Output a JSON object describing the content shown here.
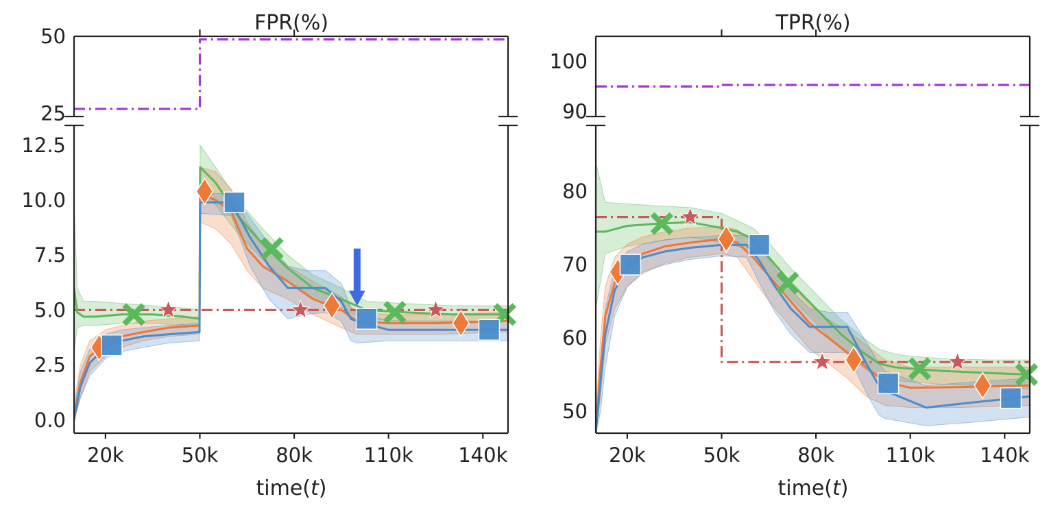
{
  "colors": {
    "green": "#5cb85c",
    "orange": "#ee7733",
    "blue": "#4a8ccc",
    "red": "#c85a5a",
    "purple": "#a335d9",
    "arrow": "#4169e1",
    "axis": "#222222"
  },
  "chart_data": [
    {
      "type": "line",
      "id": "fpr",
      "title": "FPR(%)",
      "xlabel_prefix": "time(",
      "xlabel_var": "t",
      "xlabel_suffix": ")",
      "xlim": [
        10000,
        148000
      ],
      "xticks": [
        20000,
        50000,
        80000,
        110000,
        140000
      ],
      "xtick_labels": [
        "20k",
        "50k",
        "80k",
        "110k",
        "140k"
      ],
      "top_ylim": [
        24,
        50
      ],
      "top_yticks": [
        25,
        50
      ],
      "top_ytick_labels": [
        "25",
        "50"
      ],
      "bottom_ylim": [
        -0.6,
        13.4
      ],
      "bottom_yticks": [
        0.0,
        2.5,
        5.0,
        7.5,
        10.0,
        12.5
      ],
      "bottom_ytick_labels": [
        "0.0",
        "2.5",
        "5.0",
        "7.5",
        "10.0",
        "12.5"
      ],
      "series": [
        {
          "name": "purple baseline",
          "color_key": "purple",
          "dash": "dashdot",
          "panel": "top",
          "step": true,
          "x": [
            10000,
            50000,
            50000,
            148000
          ],
          "y": [
            26.5,
            26.5,
            49,
            49
          ]
        },
        {
          "name": "red reference",
          "color_key": "red",
          "dash": "dashdot",
          "panel": "bottom",
          "step": false,
          "x": [
            10000,
            148000
          ],
          "y": [
            5.0,
            5.0
          ],
          "markers": {
            "shape": "star",
            "x": [
              40000,
              82000,
              125000
            ],
            "y": [
              5.0,
              5.0,
              5.0
            ]
          }
        },
        {
          "name": "green method",
          "color_key": "green",
          "dash": "solid",
          "panel": "bottom",
          "step": false,
          "x": [
            10000,
            11000,
            13000,
            17000,
            25000,
            35000,
            45000,
            49900,
            50100,
            55000,
            62000,
            70000,
            78000,
            86000,
            95000,
            103000,
            115000,
            130000,
            148000
          ],
          "y": [
            6.0,
            4.9,
            4.7,
            4.7,
            4.8,
            4.8,
            4.7,
            4.6,
            11.5,
            10.8,
            9.3,
            8.0,
            6.9,
            6.0,
            5.5,
            5.0,
            4.9,
            4.8,
            4.8
          ],
          "band_upper": [
            10,
            6.0,
            5.4,
            5.4,
            5.3,
            5.2,
            5.1,
            5.0,
            12.5,
            11.5,
            10.0,
            8.7,
            7.5,
            6.6,
            6.0,
            5.4,
            5.3,
            5.2,
            5.2
          ],
          "band_lower": [
            3.0,
            4.2,
            4.3,
            4.3,
            4.4,
            4.4,
            4.3,
            4.3,
            10.2,
            9.8,
            8.5,
            7.3,
            6.3,
            5.5,
            5.0,
            4.6,
            4.5,
            4.5,
            4.5
          ],
          "markers": {
            "shape": "x",
            "x": [
              29000,
              73000,
              112000,
              147000
            ],
            "y": [
              4.8,
              7.8,
              4.9,
              4.8
            ]
          }
        },
        {
          "name": "orange method",
          "color_key": "orange",
          "dash": "solid",
          "panel": "bottom",
          "step": false,
          "x": [
            10000,
            12000,
            15000,
            20000,
            25000,
            32000,
            40000,
            49900,
            50100,
            55000,
            60000,
            65000,
            70000,
            78000,
            86000,
            95000,
            100000,
            110000,
            125000,
            148000
          ],
          "y": [
            0.2,
            1.7,
            2.9,
            3.5,
            3.8,
            4.0,
            4.2,
            4.3,
            10.3,
            10.0,
            9.5,
            7.8,
            7.0,
            6.3,
            5.5,
            5.0,
            4.5,
            4.4,
            4.4,
            4.5
          ],
          "band_upper": [
            0.8,
            2.5,
            3.6,
            4.1,
            4.3,
            4.5,
            4.6,
            4.7,
            11.5,
            11.3,
            10.5,
            9.0,
            8.0,
            7.0,
            6.3,
            5.6,
            4.9,
            4.8,
            4.8,
            4.9
          ],
          "band_lower": [
            0.0,
            1.0,
            2.2,
            2.9,
            3.3,
            3.6,
            3.8,
            3.9,
            9.0,
            8.7,
            8.0,
            6.8,
            6.0,
            5.5,
            4.8,
            4.2,
            3.9,
            3.9,
            3.9,
            4.0
          ],
          "markers": {
            "shape": "diamond",
            "x": [
              18000,
              51500,
              92000,
              133000
            ],
            "y": [
              3.3,
              10.4,
              5.2,
              4.4
            ]
          }
        },
        {
          "name": "blue method",
          "color_key": "blue",
          "dash": "solid",
          "panel": "bottom",
          "step": false,
          "x": [
            10000,
            12000,
            15000,
            20000,
            25000,
            32000,
            40000,
            49900,
            50100,
            60000,
            66000,
            72000,
            78000,
            84000,
            90000,
            95000,
            98000,
            100000,
            110000,
            125000,
            148000
          ],
          "y": [
            0.0,
            1.5,
            2.6,
            3.3,
            3.6,
            3.8,
            3.9,
            4.0,
            9.9,
            9.9,
            8.3,
            7.0,
            6.0,
            6.0,
            6.0,
            5.4,
            4.6,
            4.5,
            4.1,
            4.1,
            4.1
          ],
          "band_upper": [
            0.5,
            2.2,
            3.2,
            3.9,
            4.1,
            4.2,
            4.3,
            4.4,
            10.3,
            10.3,
            9.2,
            8.0,
            7.0,
            6.8,
            6.8,
            6.2,
            5.1,
            4.9,
            4.5,
            4.5,
            4.5
          ],
          "band_lower": [
            0.0,
            1.0,
            2.0,
            2.8,
            3.1,
            3.3,
            3.5,
            3.6,
            9.4,
            9.3,
            7.0,
            5.5,
            4.6,
            4.8,
            4.9,
            4.5,
            3.6,
            3.5,
            3.6,
            3.6,
            3.6
          ],
          "markers": {
            "shape": "square",
            "x": [
              22000,
              61000,
              103000,
              142000
            ],
            "y": [
              3.4,
              9.9,
              4.6,
              4.1
            ]
          }
        }
      ],
      "annotation": {
        "type": "arrow",
        "x": 100000,
        "y_from": 7.8,
        "y_to": 5.2,
        "color_key": "arrow"
      }
    },
    {
      "type": "line",
      "id": "tpr",
      "title": "TPR(%)",
      "xlabel_prefix": "time(",
      "xlabel_var": "t",
      "xlabel_suffix": ")",
      "xlim": [
        10000,
        148000
      ],
      "xticks": [
        20000,
        50000,
        80000,
        110000,
        140000
      ],
      "xtick_labels": [
        "20k",
        "50k",
        "80k",
        "110k",
        "140k"
      ],
      "top_ylim": [
        89,
        105
      ],
      "top_yticks": [
        90,
        100
      ],
      "top_ytick_labels": [
        "90",
        "100"
      ],
      "bottom_ylim": [
        47,
        89
      ],
      "bottom_yticks": [
        50,
        60,
        70,
        80
      ],
      "bottom_ytick_labels": [
        "50",
        "60",
        "70",
        "80"
      ],
      "series": [
        {
          "name": "purple baseline",
          "color_key": "purple",
          "dash": "dashdot",
          "panel": "top",
          "step": false,
          "x": [
            10000,
            50000,
            50000,
            148000
          ],
          "y": [
            95.0,
            95.0,
            95.3,
            95.3
          ]
        },
        {
          "name": "red reference",
          "color_key": "red",
          "dash": "dashdot",
          "panel": "bottom",
          "step": true,
          "x": [
            10000,
            50000,
            50000,
            148000
          ],
          "y": [
            76.5,
            76.5,
            56.7,
            56.7
          ],
          "markers": {
            "shape": "star",
            "x": [
              40000,
              82000,
              125000
            ],
            "y": [
              76.5,
              56.7,
              56.7
            ]
          }
        },
        {
          "name": "green method",
          "color_key": "green",
          "dash": "solid",
          "panel": "bottom",
          "step": false,
          "x": [
            10000,
            13000,
            20000,
            30000,
            40000,
            50000,
            55000,
            60000,
            65000,
            72000,
            80000,
            88000,
            95000,
            100000,
            105000,
            110000,
            120000,
            135000,
            148000
          ],
          "y": [
            74.5,
            74.5,
            75.3,
            75.6,
            75.8,
            75.0,
            74.5,
            73.5,
            71.0,
            67.5,
            64.0,
            60.5,
            58.0,
            56.5,
            56.0,
            55.8,
            55.5,
            55.2,
            55.0
          ],
          "band_upper": [
            84,
            78.5,
            78.3,
            78.0,
            77.8,
            77.0,
            76.0,
            75.0,
            73.0,
            69.5,
            66.0,
            62.5,
            60.0,
            58.5,
            57.8,
            57.5,
            57.2,
            57.0,
            57.0
          ],
          "band_lower": [
            64,
            71.5,
            72.5,
            73.2,
            73.8,
            73.0,
            72.5,
            71.8,
            69.0,
            65.5,
            62.0,
            58.5,
            56.0,
            54.5,
            54.2,
            54.0,
            53.7,
            53.4,
            53.0
          ],
          "markers": {
            "shape": "x",
            "x": [
              31000,
              71000,
              113000,
              147000
            ],
            "y": [
              75.6,
              67.5,
              55.8,
              55.0
            ]
          }
        },
        {
          "name": "orange method",
          "color_key": "orange",
          "dash": "solid",
          "panel": "bottom",
          "step": false,
          "x": [
            10000,
            11500,
            13000,
            16000,
            20000,
            25000,
            32000,
            40000,
            50000,
            55000,
            60000,
            66000,
            72000,
            78000,
            84000,
            90000,
            96000,
            102000,
            110000,
            125000,
            148000
          ],
          "y": [
            47,
            56,
            63,
            67.5,
            70.0,
            71.5,
            72.5,
            73.0,
            73.5,
            73.0,
            71.0,
            68.0,
            65.0,
            62.0,
            60.0,
            58.0,
            56.0,
            54.0,
            53.2,
            53.3,
            53.5
          ],
          "band_upper": [
            50,
            60,
            67,
            71.0,
            72.8,
            73.8,
            74.5,
            75.0,
            75.2,
            74.8,
            73.0,
            70.5,
            67.5,
            64.5,
            62.5,
            61.0,
            59.0,
            57.0,
            56.0,
            56.0,
            56.0
          ],
          "band_lower": [
            47,
            52,
            59,
            64.0,
            67.0,
            68.8,
            70.2,
            71.0,
            71.5,
            71.0,
            68.0,
            64.5,
            61.5,
            58.5,
            56.5,
            54.5,
            52.0,
            50.8,
            50.5,
            50.5,
            50.8
          ],
          "markers": {
            "shape": "diamond",
            "x": [
              17000,
              51500,
              92000,
              133000
            ],
            "y": [
              69.0,
              73.5,
              57.0,
              53.5
            ]
          }
        },
        {
          "name": "blue method",
          "color_key": "blue",
          "dash": "solid",
          "panel": "bottom",
          "step": false,
          "x": [
            10000,
            11500,
            13000,
            16000,
            20000,
            25000,
            32000,
            40000,
            50000,
            58000,
            62000,
            67000,
            72000,
            78000,
            84000,
            90000,
            96000,
            100000,
            102000,
            115000,
            130000,
            148000
          ],
          "y": [
            47,
            54,
            60.5,
            66.5,
            69.5,
            71.0,
            71.8,
            72.3,
            72.7,
            72.7,
            70.5,
            67.0,
            64.0,
            61.5,
            61.5,
            61.5,
            56.5,
            53.5,
            52.8,
            50.5,
            51.2,
            52.0
          ],
          "band_upper": [
            49,
            57,
            64,
            69.5,
            71.8,
            72.8,
            73.4,
            73.7,
            74.0,
            74.0,
            72.5,
            69.5,
            66.5,
            64.0,
            63.5,
            63.5,
            59.5,
            56.5,
            55.5,
            53.5,
            54.0,
            54.5
          ],
          "band_lower": [
            47,
            50,
            56,
            63.0,
            67.0,
            69.0,
            70.0,
            70.7,
            71.2,
            71.0,
            67.5,
            63.5,
            60.5,
            58.0,
            58.0,
            58.0,
            52.5,
            49.5,
            49.0,
            48.0,
            48.5,
            49.2
          ],
          "markers": {
            "shape": "square",
            "x": [
              21000,
              62000,
              103000,
              142000
            ],
            "y": [
              70.0,
              72.7,
              53.8,
              51.8
            ]
          }
        }
      ]
    }
  ]
}
